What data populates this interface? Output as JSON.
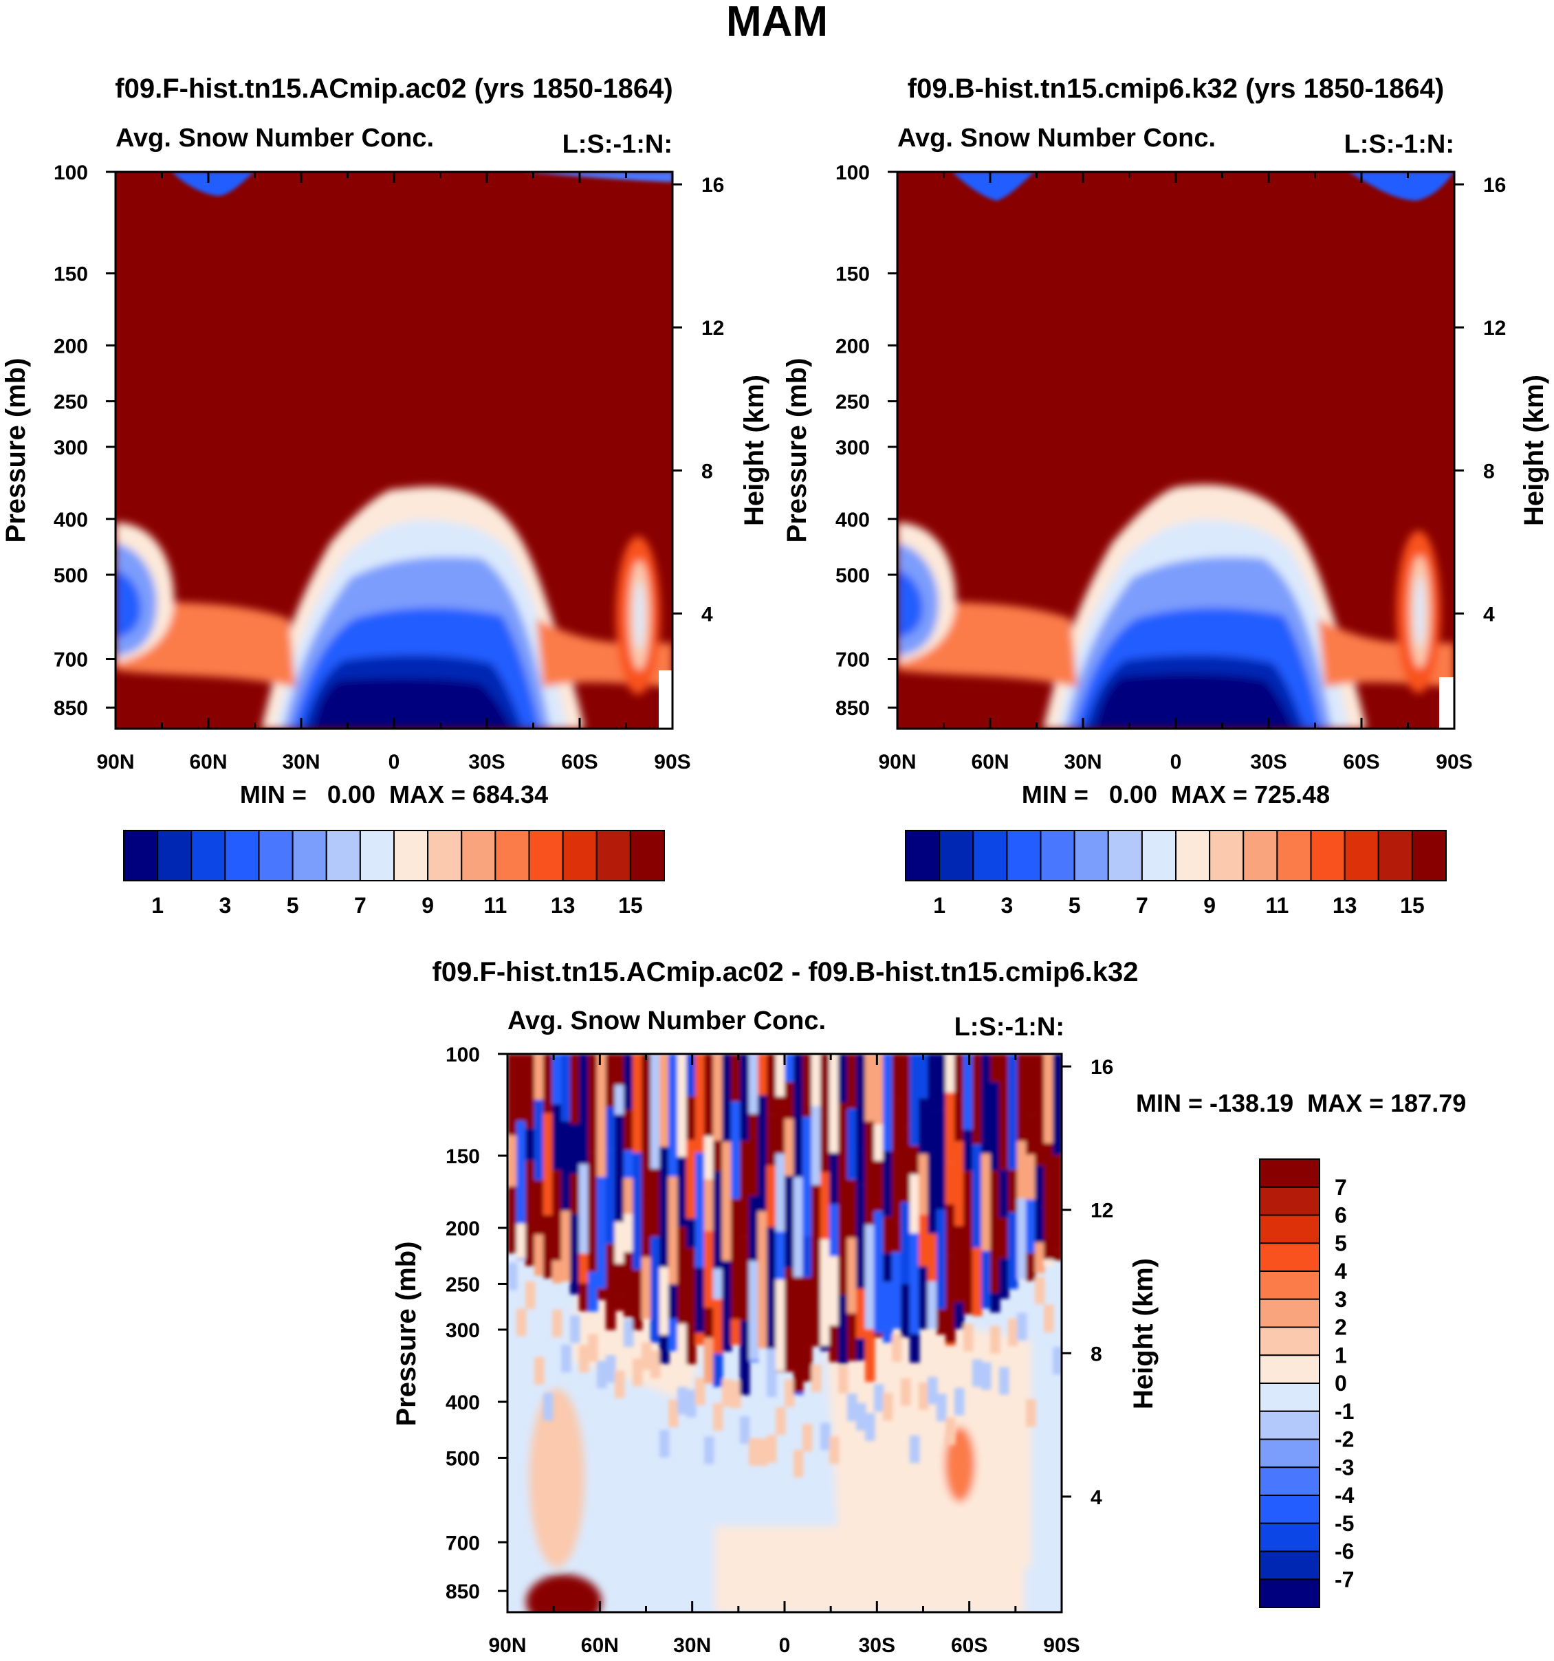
{
  "page_title": "MAM",
  "colors": {
    "absolute": [
      "#00007f",
      "#0026b4",
      "#0d46e6",
      "#235dff",
      "#4978ff",
      "#7b9dfc",
      "#b3c9fb",
      "#dbe9fd",
      "#fde9da",
      "#fbc9ad",
      "#f9a47c",
      "#fb7c48",
      "#f9521e",
      "#dc3109",
      "#b41b08",
      "#890000"
    ],
    "difference": [
      "#00007f",
      "#0026b4",
      "#0d46e6",
      "#235dff",
      "#4978ff",
      "#7b9dfc",
      "#b3c9fb",
      "#dbe9fd",
      "#fde9da",
      "#fbc9ad",
      "#f9a47c",
      "#fb7c48",
      "#f9521e",
      "#dc3109",
      "#b41b08",
      "#890000"
    ]
  },
  "chart_data": [
    {
      "id": "panel_a",
      "type": "heatmap",
      "title": "f09.F-hist.tn15.ACmip.ac02 (yrs 1850-1864)",
      "left_label": "Avg. Snow Number Conc.",
      "right_label": "L:S:-1:N:",
      "xlabel": "",
      "ylabel": "Pressure (mb)",
      "y2label": "Height (km)",
      "x_ticks": [
        "90N",
        "60N",
        "30N",
        "0",
        "30S",
        "60S",
        "90S"
      ],
      "y_ticks": [
        "100",
        "150",
        "200",
        "250",
        "300",
        "400",
        "500",
        "700",
        "850"
      ],
      "y2_ticks": [
        "16",
        "12",
        "8",
        "4"
      ],
      "xlim": [
        90,
        -90
      ],
      "ylim_mb": [
        100,
        925
      ],
      "stats_text": "MIN =   0.00  MAX = 684.34",
      "colorbar_orientation": "horizontal",
      "colorbar_ticks": [
        "1",
        "3",
        "5",
        "7",
        "9",
        "11",
        "13",
        "15"
      ],
      "contour_levels": [
        1,
        2,
        3,
        4,
        5,
        6,
        7,
        8,
        9,
        10,
        11,
        12,
        13,
        14,
        15
      ]
    },
    {
      "id": "panel_b",
      "type": "heatmap",
      "title": "f09.B-hist.tn15.cmip6.k32 (yrs 1850-1864)",
      "left_label": "Avg. Snow Number Conc.",
      "right_label": "L:S:-1:N:",
      "xlabel": "",
      "ylabel": "Pressure (mb)",
      "y2label": "Height (km)",
      "x_ticks": [
        "90N",
        "60N",
        "30N",
        "0",
        "30S",
        "60S",
        "90S"
      ],
      "y_ticks": [
        "100",
        "150",
        "200",
        "250",
        "300",
        "400",
        "500",
        "700",
        "850"
      ],
      "y2_ticks": [
        "16",
        "12",
        "8",
        "4"
      ],
      "xlim": [
        90,
        -90
      ],
      "ylim_mb": [
        100,
        925
      ],
      "stats_text": "MIN =   0.00  MAX = 725.48",
      "colorbar_orientation": "horizontal",
      "colorbar_ticks": [
        "1",
        "3",
        "5",
        "7",
        "9",
        "11",
        "13",
        "15"
      ],
      "contour_levels": [
        1,
        2,
        3,
        4,
        5,
        6,
        7,
        8,
        9,
        10,
        11,
        12,
        13,
        14,
        15
      ]
    },
    {
      "id": "panel_diff",
      "type": "heatmap",
      "title": "f09.F-hist.tn15.ACmip.ac02 - f09.B-hist.tn15.cmip6.k32",
      "left_label": "Avg. Snow Number Conc.",
      "right_label": "L:S:-1:N:",
      "xlabel": "",
      "ylabel": "Pressure (mb)",
      "y2label": "Height (km)",
      "x_ticks": [
        "90N",
        "60N",
        "30N",
        "0",
        "30S",
        "60S",
        "90S"
      ],
      "y_ticks": [
        "100",
        "150",
        "200",
        "250",
        "300",
        "400",
        "500",
        "700",
        "850"
      ],
      "y2_ticks": [
        "16",
        "12",
        "8",
        "4"
      ],
      "xlim": [
        90,
        -90
      ],
      "ylim_mb": [
        100,
        925
      ],
      "stats_text": "MIN = -138.19  MAX = 187.79",
      "colorbar_orientation": "vertical",
      "colorbar_ticks": [
        "7",
        "6",
        "5",
        "4",
        "3",
        "2",
        "1",
        "0",
        "-1",
        "-2",
        "-3",
        "-4",
        "-5",
        "-6",
        "-7"
      ],
      "contour_levels": [
        -7,
        -6,
        -5,
        -4,
        -3,
        -2,
        -1,
        0,
        1,
        2,
        3,
        4,
        5,
        6,
        7
      ]
    }
  ]
}
